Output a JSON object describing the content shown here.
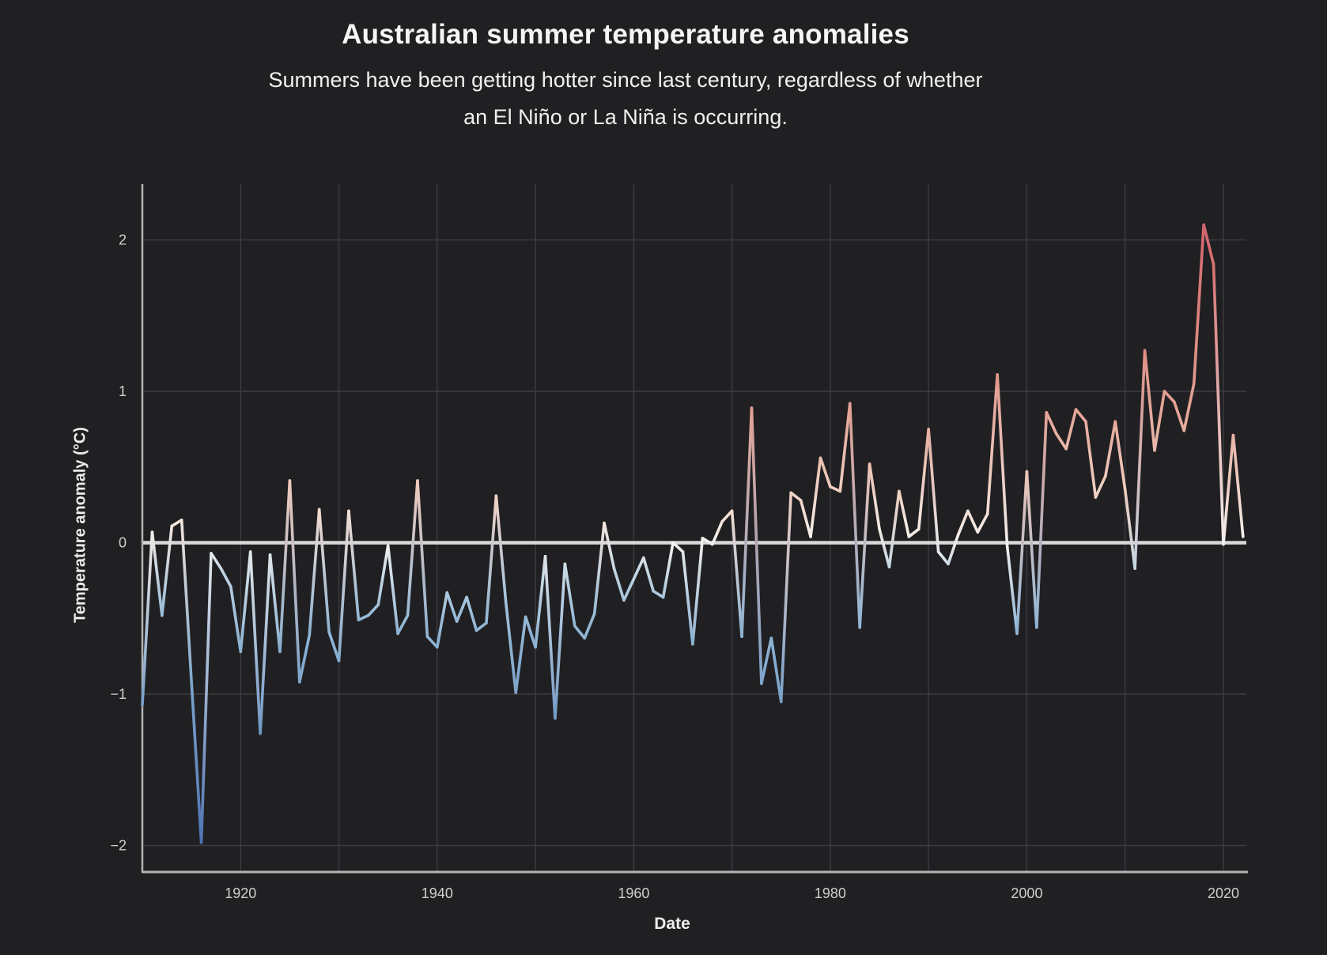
{
  "header": {
    "title": "Australian summer temperature anomalies",
    "subtitle_lines": [
      "Summers have been getting hotter since last century, regardless of whether",
      "an El Niño or La Niña is occurring."
    ]
  },
  "chart_data": {
    "type": "line",
    "title": "Australian summer temperature anomalies",
    "xlabel": "Date",
    "ylabel": "Temperature anomaly (°C)",
    "xlim": [
      1910,
      2023
    ],
    "ylim": [
      -2.37,
      2.37
    ],
    "grid": true,
    "zero_line": true,
    "x_tick_labels": [
      "1920",
      "1940",
      "1960",
      "1980",
      "2000",
      "2020"
    ],
    "x_tick_years": [
      1920,
      1940,
      1960,
      1980,
      2000,
      2020
    ],
    "x_grid_years": [
      1920,
      1930,
      1940,
      1950,
      1960,
      1970,
      1980,
      1990,
      2000,
      2010,
      2020
    ],
    "y_tick_labels": [
      "2",
      "1",
      "0",
      "−1",
      "−2"
    ],
    "y_tick_values": [
      2,
      1,
      0,
      -1,
      -2
    ],
    "x": [
      1910,
      1911,
      1912,
      1913,
      1914,
      1915,
      1916,
      1917,
      1918,
      1919,
      1920,
      1921,
      1922,
      1923,
      1924,
      1925,
      1926,
      1927,
      1928,
      1929,
      1930,
      1931,
      1932,
      1933,
      1934,
      1935,
      1936,
      1937,
      1938,
      1939,
      1940,
      1941,
      1942,
      1943,
      1944,
      1945,
      1946,
      1947,
      1948,
      1949,
      1950,
      1951,
      1952,
      1953,
      1954,
      1955,
      1956,
      1957,
      1958,
      1959,
      1960,
      1961,
      1962,
      1963,
      1964,
      1965,
      1966,
      1967,
      1968,
      1969,
      1970,
      1971,
      1972,
      1973,
      1974,
      1975,
      1976,
      1977,
      1978,
      1979,
      1980,
      1981,
      1982,
      1983,
      1984,
      1985,
      1986,
      1987,
      1988,
      1989,
      1990,
      1991,
      1992,
      1993,
      1994,
      1995,
      1996,
      1997,
      1998,
      1999,
      2000,
      2001,
      2002,
      2003,
      2004,
      2005,
      2006,
      2007,
      2008,
      2009,
      2010,
      2011,
      2012,
      2013,
      2014,
      2015,
      2016,
      2017,
      2018,
      2019,
      2020,
      2021,
      2022
    ],
    "values": [
      -1.07,
      0.07,
      -0.48,
      0.11,
      0.15,
      -0.92,
      -1.98,
      -0.07,
      -0.17,
      -0.29,
      -0.72,
      -0.06,
      -1.26,
      -0.08,
      -0.72,
      0.41,
      -0.92,
      -0.61,
      0.22,
      -0.59,
      -0.78,
      0.21,
      -0.51,
      -0.48,
      -0.41,
      -0.02,
      -0.6,
      -0.48,
      0.41,
      -0.62,
      -0.69,
      -0.33,
      -0.52,
      -0.36,
      -0.58,
      -0.53,
      0.31,
      -0.4,
      -0.99,
      -0.49,
      -0.69,
      -0.09,
      -1.16,
      -0.14,
      -0.55,
      -0.63,
      -0.47,
      0.13,
      -0.17,
      -0.38,
      -0.24,
      -0.1,
      -0.32,
      -0.36,
      0.0,
      -0.06,
      -0.67,
      0.03,
      -0.01,
      0.14,
      0.21,
      -0.62,
      0.89,
      -0.93,
      -0.63,
      -1.05,
      0.33,
      0.28,
      0.04,
      0.56,
      0.37,
      0.34,
      0.92,
      -0.56,
      0.52,
      0.09,
      -0.16,
      0.34,
      0.04,
      0.09,
      0.75,
      -0.06,
      -0.14,
      0.05,
      0.21,
      0.07,
      0.19,
      1.11,
      -0.02,
      -0.6,
      0.47,
      -0.56,
      0.86,
      0.72,
      0.62,
      0.88,
      0.8,
      0.3,
      0.44,
      0.8,
      0.35,
      -0.17,
      1.27,
      0.61,
      1.0,
      0.93,
      0.74,
      1.05,
      2.1,
      1.84,
      -0.01,
      0.71,
      0.04
    ],
    "colors": {
      "background": "#202023",
      "grid": "#3d3d41",
      "spine": "#b3b3b3",
      "zero_line": "#d8d8d8",
      "tick_text": "#cfcfcf",
      "colormap_stops": [
        [
          -2.0,
          "#4d72b3"
        ],
        [
          -1.0,
          "#7aa2cb"
        ],
        [
          -0.5,
          "#94b9d6"
        ],
        [
          -0.15,
          "#cadae5"
        ],
        [
          0.0,
          "#f6f3ef"
        ],
        [
          0.35,
          "#f0cfc0"
        ],
        [
          0.9,
          "#e4a294"
        ],
        [
          1.5,
          "#dc8278"
        ],
        [
          2.1,
          "#d3646c"
        ]
      ]
    },
    "legend": null
  }
}
